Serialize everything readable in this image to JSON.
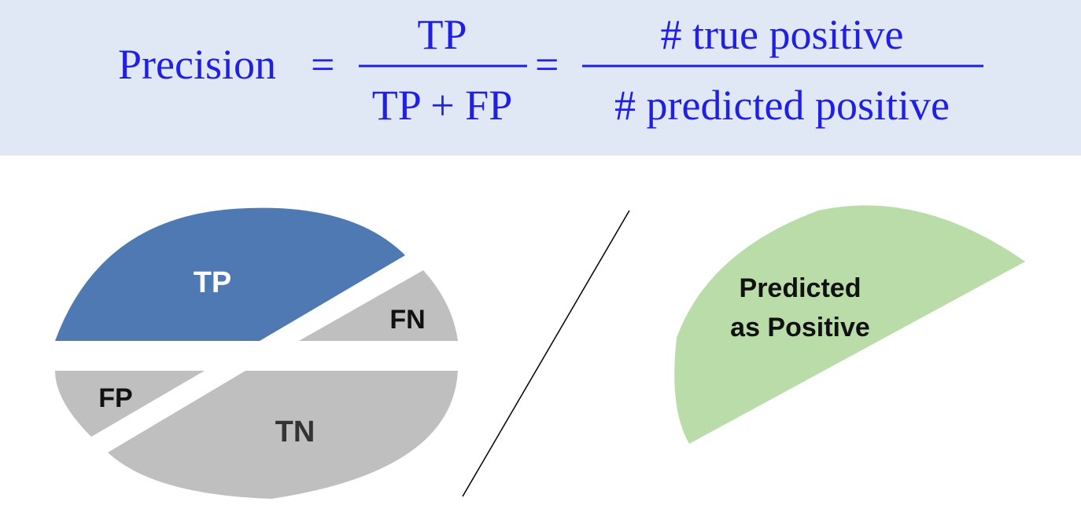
{
  "formula": {
    "lhs": "Precision",
    "equals_1": "=",
    "frac1_numerator": "TP",
    "frac1_denominator": "TP + FP",
    "equals_2": "=",
    "frac2_numerator": "# true positive",
    "frac2_denominator": "# predicted positive",
    "text_color": "#1f1fe6",
    "banner_color": "#dfe8f4"
  },
  "confusion_ellipse": {
    "segments": [
      {
        "key": "tp",
        "label": "TP",
        "fill": "#4e79b3",
        "text_color": "#ffffff"
      },
      {
        "key": "fn",
        "label": "FN",
        "fill": "#bfbfbf",
        "text_color": "#111111"
      },
      {
        "key": "fp",
        "label": "FP",
        "fill": "#bfbfbf",
        "text_color": "#111111"
      },
      {
        "key": "tn",
        "label": "TN",
        "fill": "#bfbfbf",
        "text_color": "#333333"
      }
    ]
  },
  "divider": {
    "symbol": "/",
    "color": "#000000"
  },
  "predicted_region": {
    "line1": "Predicted",
    "line2": "as Positive",
    "fill": "#b9dca8",
    "text_color": "#111111"
  }
}
